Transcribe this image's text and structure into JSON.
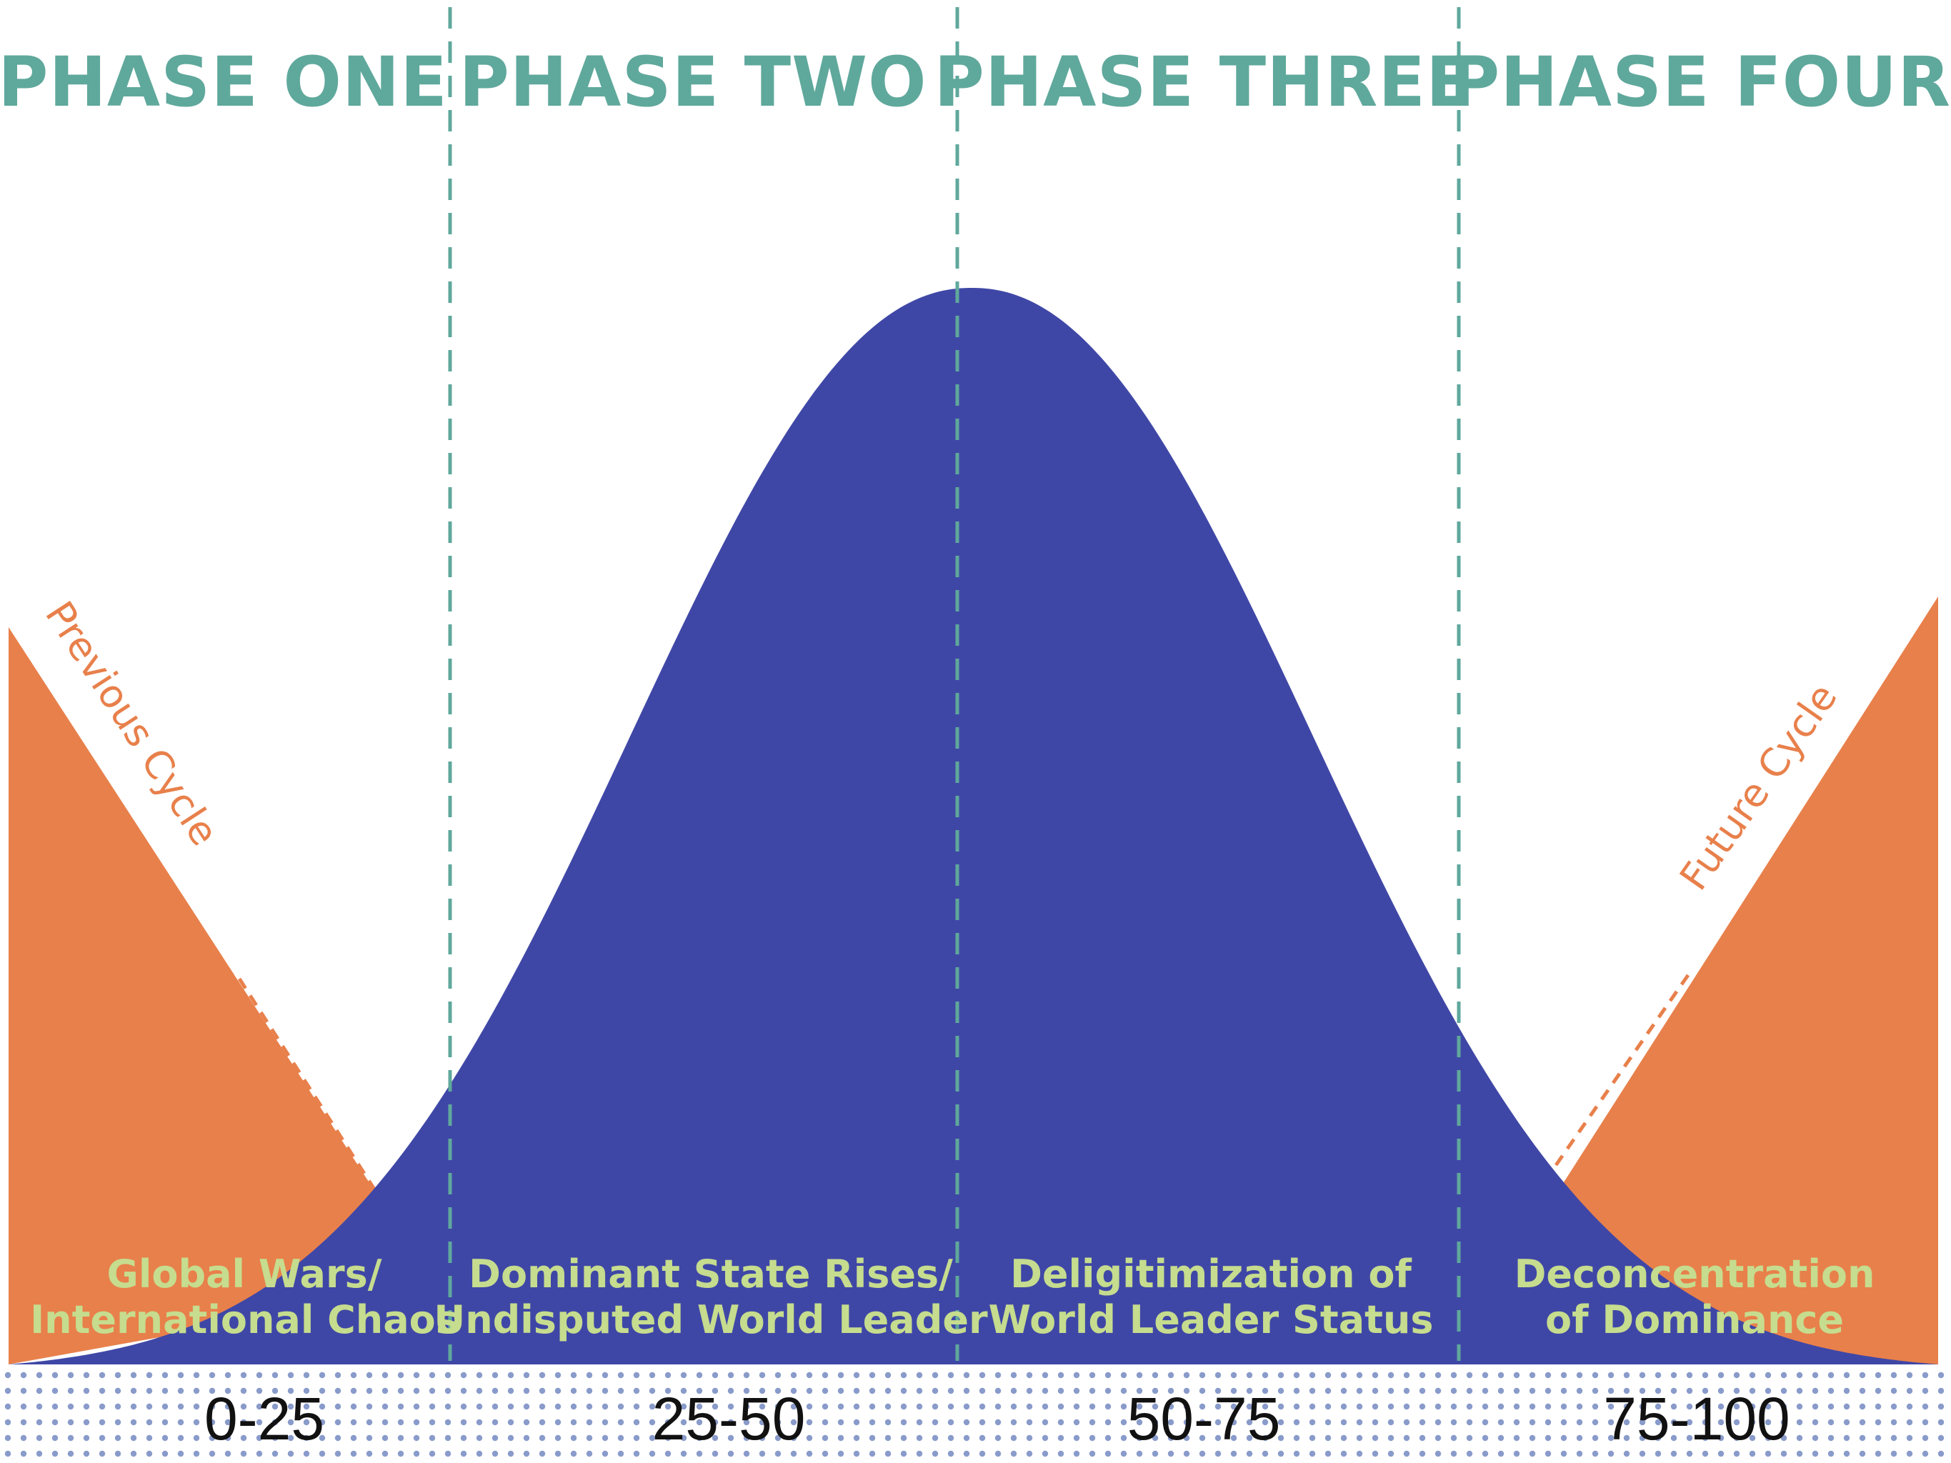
{
  "phases": [
    {
      "title": "PHASE ONE",
      "desc": [
        "Global Wars/",
        "International Chaos"
      ],
      "years": "0-25"
    },
    {
      "title": "PHASE TWO",
      "desc": [
        "Dominant State Rises/",
        "Undisputed World Leader"
      ],
      "years": "25-50"
    },
    {
      "title": "PHASE THREE",
      "desc": [
        "Deligitimization of",
        "World Leader Status"
      ],
      "years": "50-75"
    },
    {
      "title": "PHASE FOUR",
      "desc": [
        "Deconcentration",
        "of Dominance"
      ],
      "years": "75-100"
    }
  ],
  "cycles": {
    "previous": "Previous Cycle",
    "future": "Future Cycle"
  },
  "colors": {
    "main_curve": "#3f47a6",
    "cycle": "#e8804b",
    "phase_title": "#5fa89c",
    "divider": "#5fa89c",
    "description": "#c6dc8e",
    "year_text": "#111111"
  },
  "icons": [
    "bell-curve",
    "orange-triangle"
  ]
}
